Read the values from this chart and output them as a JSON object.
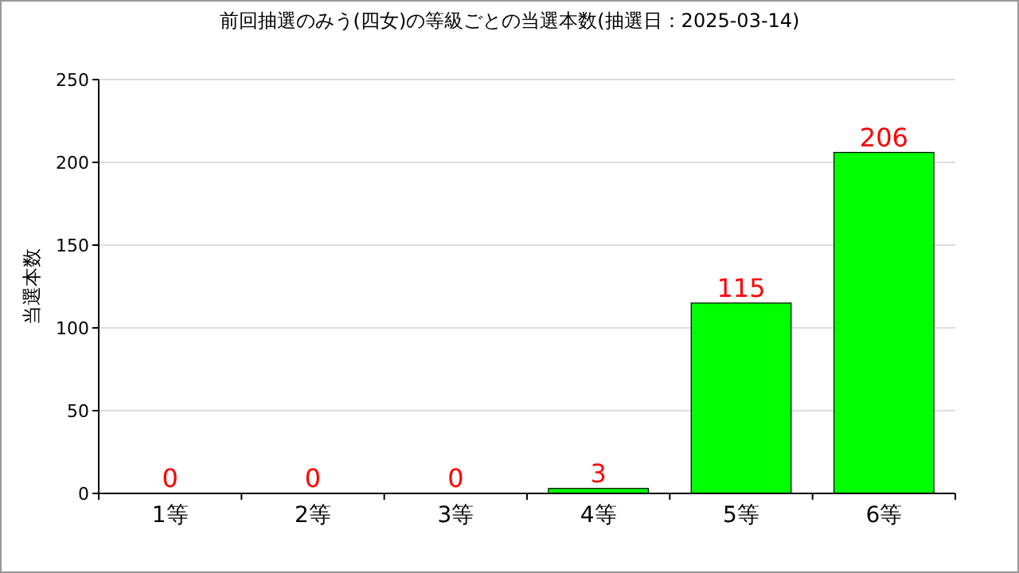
{
  "chart_data": {
    "type": "bar",
    "title": "前回抽選のみう(四女)の等級ごとの当選本数(抽選日：2025-03-14)",
    "ylabel": "当選本数",
    "categories": [
      "1等",
      "2等",
      "3等",
      "4等",
      "5等",
      "6等"
    ],
    "values": [
      0,
      0,
      0,
      3,
      115,
      206
    ],
    "color": "#00ff00",
    "ylim": [
      0,
      250
    ],
    "yticks": [
      0,
      50,
      100,
      150,
      200,
      250
    ],
    "grid": "y",
    "data_labels": true
  }
}
